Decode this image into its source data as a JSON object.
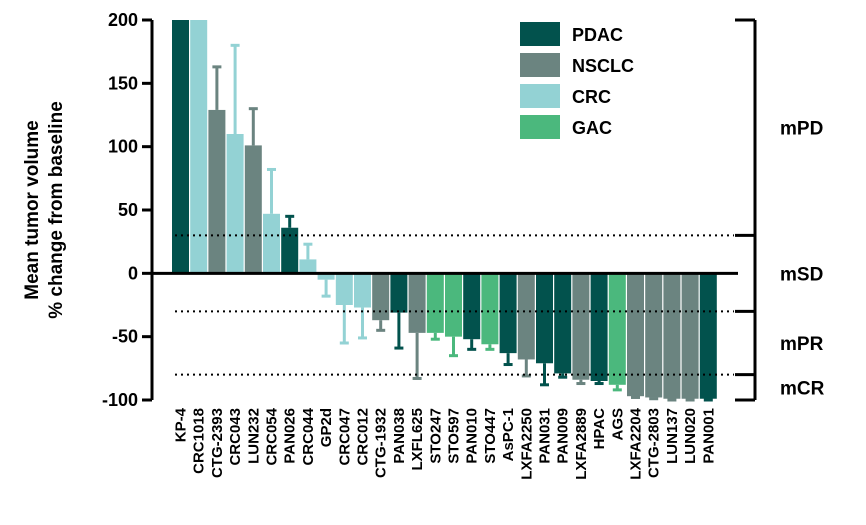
{
  "chart_data": {
    "type": "bar",
    "ylabel_lines": [
      "Mean tumor volume",
      "% change from baseline"
    ],
    "ylim": [
      -100,
      200
    ],
    "yticks": [
      200,
      150,
      100,
      50,
      0,
      -50,
      -100
    ],
    "categories": [
      "KP-4",
      "CRC1018",
      "CTG-2393",
      "CRC043",
      "LUN232",
      "CRC054",
      "PAN026",
      "CRC044",
      "GP2d",
      "CRC047",
      "CRC012",
      "CTG-1932",
      "PAN038",
      "LXFL625",
      "STO247",
      "STO597",
      "PAN010",
      "STO447",
      "AsPC-1",
      "LXFA2250",
      "PAN031",
      "PAN009",
      "LXFA2889",
      "HPAC",
      "AGS",
      "LXFA2204",
      "CTG-2803",
      "LUN137",
      "LUN020",
      "PAN001"
    ],
    "values": [
      200,
      200,
      129,
      110,
      101,
      47,
      36,
      11,
      -5,
      -25,
      -27,
      -37,
      -31,
      -47,
      -47,
      -50,
      -52,
      -56,
      -63,
      -68,
      -71,
      -79,
      -84,
      -85,
      -88,
      -97,
      -98,
      -99,
      -99,
      -99
    ],
    "errors": [
      0,
      0,
      34,
      70,
      29,
      35,
      9,
      12,
      13,
      30,
      24,
      8,
      28,
      36,
      5,
      15,
      8,
      4,
      9,
      13,
      17,
      3,
      3,
      2,
      4,
      1,
      1,
      1,
      1,
      1
    ],
    "groups": [
      "PDAC",
      "CRC",
      "NSCLC",
      "CRC",
      "NSCLC",
      "CRC",
      "PDAC",
      "CRC",
      "CRC",
      "CRC",
      "CRC",
      "NSCLC",
      "PDAC",
      "NSCLC",
      "GAC",
      "GAC",
      "PDAC",
      "GAC",
      "PDAC",
      "NSCLC",
      "PDAC",
      "PDAC",
      "NSCLC",
      "PDAC",
      "GAC",
      "NSCLC",
      "NSCLC",
      "NSCLC",
      "NSCLC",
      "PDAC"
    ],
    "series": [
      {
        "name": "PDAC",
        "color": "#02524d"
      },
      {
        "name": "NSCLC",
        "color": "#6b8480"
      },
      {
        "name": "CRC",
        "color": "#93d2d4"
      },
      {
        "name": "GAC",
        "color": "#4bb87d"
      }
    ],
    "legend_position": "top-right",
    "thresholds": [
      30,
      -30,
      -80
    ],
    "response_bands": [
      {
        "label": "mPD",
        "from": 200,
        "to": 30
      },
      {
        "label": "mSD",
        "from": 30,
        "to": -30
      },
      {
        "label": "mPR",
        "from": -30,
        "to": -80
      },
      {
        "label": "mCR",
        "from": -80,
        "to": -100
      }
    ]
  }
}
